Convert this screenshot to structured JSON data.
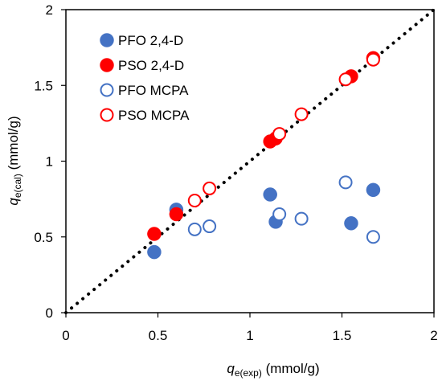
{
  "chart_data": {
    "type": "scatter",
    "xlabel": {
      "symbol": "q",
      "subscript": "e(exp)",
      "unit": " (mmol/g)"
    },
    "ylabel": {
      "symbol": "q",
      "subscript": "e(cal)",
      "unit": " (mmol/g)"
    },
    "xlim": [
      0,
      2
    ],
    "ylim": [
      0,
      2
    ],
    "xticks": [
      "0",
      "0.5",
      "1",
      "1.5",
      "2"
    ],
    "yticks": [
      "0",
      "0.5",
      "1",
      "1.5",
      "2"
    ],
    "grid": false,
    "legend_position": "top-left",
    "reference_line": {
      "style": "dotted",
      "color": "#000000",
      "from": [
        0,
        0
      ],
      "to": [
        2,
        2
      ]
    },
    "series": [
      {
        "name": "PFO 2,4-D",
        "marker": "filled-circle",
        "color": "#4472C4",
        "points": [
          [
            0.48,
            0.4
          ],
          [
            0.6,
            0.68
          ],
          [
            1.11,
            0.78
          ],
          [
            1.14,
            0.6
          ],
          [
            1.55,
            0.59
          ],
          [
            1.67,
            0.81
          ]
        ]
      },
      {
        "name": "PSO 2,4-D",
        "marker": "filled-circle",
        "color": "#FF0000",
        "points": [
          [
            0.48,
            0.52
          ],
          [
            0.6,
            0.65
          ],
          [
            1.11,
            1.13
          ],
          [
            1.14,
            1.15
          ],
          [
            1.55,
            1.56
          ],
          [
            1.67,
            1.68
          ]
        ]
      },
      {
        "name": "PFO MCPA",
        "marker": "open-circle",
        "color": "#4472C4",
        "points": [
          [
            0.7,
            0.55
          ],
          [
            0.78,
            0.57
          ],
          [
            1.16,
            0.65
          ],
          [
            1.28,
            0.62
          ],
          [
            1.52,
            0.86
          ],
          [
            1.67,
            0.5
          ]
        ]
      },
      {
        "name": "PSO MCPA",
        "marker": "open-circle",
        "color": "#FF0000",
        "points": [
          [
            0.7,
            0.74
          ],
          [
            0.78,
            0.82
          ],
          [
            1.16,
            1.18
          ],
          [
            1.28,
            1.31
          ],
          [
            1.52,
            1.54
          ],
          [
            1.67,
            1.67
          ]
        ]
      }
    ]
  }
}
